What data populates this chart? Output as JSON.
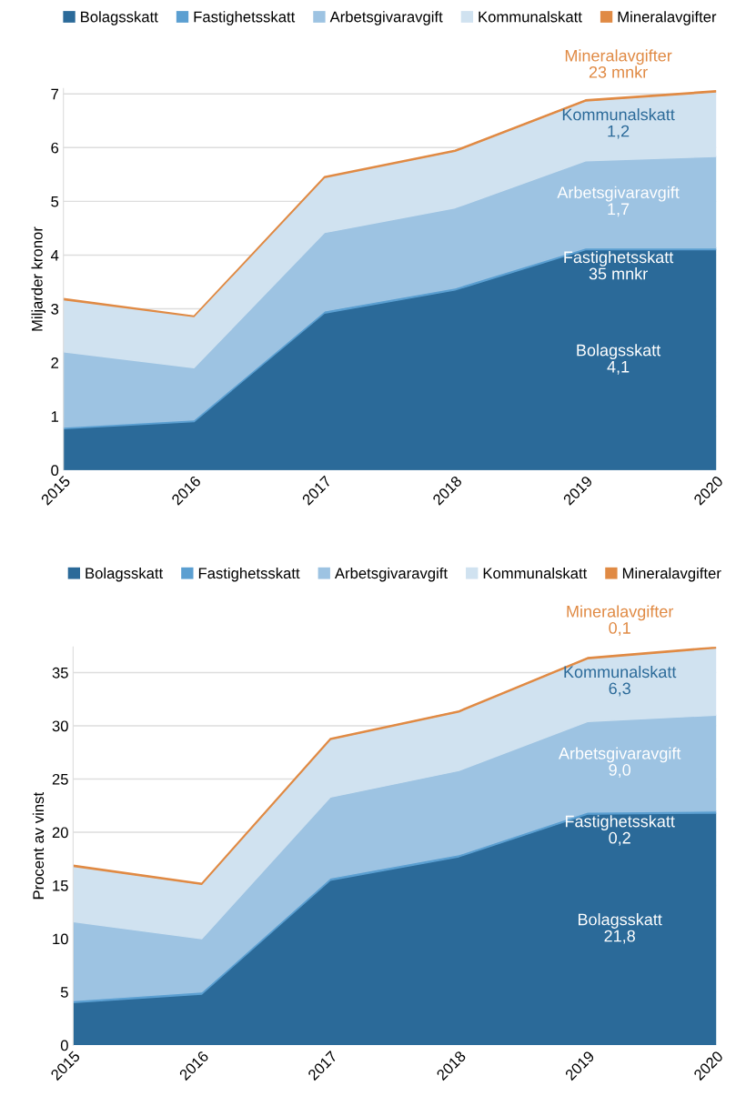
{
  "chart_data": [
    {
      "type": "area",
      "stacked": true,
      "ylabel": "Miljarder kronor",
      "x": [
        2015,
        2016,
        2017,
        2018,
        2019,
        2020
      ],
      "xlim": [
        2015,
        2020
      ],
      "xticks": [
        2015,
        2016,
        2017,
        2018,
        2019,
        2020
      ],
      "ylim": [
        0,
        7.1
      ],
      "yticks": [
        0,
        1,
        2,
        3,
        4,
        5,
        6,
        7
      ],
      "grid": "y",
      "legend": "top",
      "series": [
        {
          "name": "Bolagsskatt",
          "color": "#2b6a99",
          "values": [
            0.77,
            0.9,
            2.92,
            3.35,
            4.1,
            4.1
          ]
        },
        {
          "name": "Fastighetsskatt",
          "color": "#5b9fd1",
          "values": [
            0.03,
            0.035,
            0.04,
            0.04,
            0.035,
            0.035
          ]
        },
        {
          "name": "Arbetsgivaravgift",
          "color": "#9dc3e2",
          "values": [
            1.4,
            0.97,
            1.46,
            1.49,
            1.62,
            1.7
          ]
        },
        {
          "name": "Kommunalskatt",
          "color": "#d0e2f0",
          "values": [
            0.97,
            0.95,
            1.02,
            1.05,
            1.11,
            1.2
          ]
        },
        {
          "name": "Mineralavgifter",
          "color": "#e08a44",
          "values": [
            0.02,
            0.01,
            0.02,
            0.02,
            0.023,
            0.023
          ]
        }
      ],
      "annotations": [
        "Bolagsskatt\n4,1",
        "Fastighetsskatt\n35 mnkr",
        "Arbetsgivaravgift\n1,7",
        "Kommunalskatt\n1,2",
        "Mineralavgifter\n23 mnkr"
      ]
    },
    {
      "type": "area",
      "stacked": true,
      "ylabel": "Procent av vinst",
      "x": [
        2015,
        2016,
        2017,
        2018,
        2019,
        2020
      ],
      "xlim": [
        2015,
        2020
      ],
      "xticks": [
        2015,
        2016,
        2017,
        2018,
        2019,
        2020
      ],
      "ylim": [
        0,
        37.4
      ],
      "yticks": [
        0,
        5,
        10,
        15,
        20,
        25,
        30,
        35
      ],
      "grid": "y",
      "legend": "top",
      "series": [
        {
          "name": "Bolagsskatt",
          "color": "#2b6a99",
          "values": [
            4.0,
            4.8,
            15.5,
            17.7,
            21.7,
            21.8
          ]
        },
        {
          "name": "Fastighetsskatt",
          "color": "#5b9fd1",
          "values": [
            0.2,
            0.2,
            0.2,
            0.2,
            0.2,
            0.2
          ]
        },
        {
          "name": "Arbetsgivaravgift",
          "color": "#9dc3e2",
          "values": [
            7.4,
            5.0,
            7.6,
            7.9,
            8.5,
            9.0
          ]
        },
        {
          "name": "Kommunalskatt",
          "color": "#d0e2f0",
          "values": [
            5.2,
            5.1,
            5.4,
            5.5,
            5.9,
            6.3
          ]
        },
        {
          "name": "Mineralavgifter",
          "color": "#e08a44",
          "values": [
            0.1,
            0.1,
            0.1,
            0.1,
            0.1,
            0.1
          ]
        }
      ],
      "annotations": [
        "Bolagsskatt\n21,8",
        "Fastighetsskatt\n0,2",
        "Arbetsgivaravgift\n9,0",
        "Kommunalskatt\n6,3",
        "Mineralavgifter\n0,1"
      ]
    }
  ]
}
